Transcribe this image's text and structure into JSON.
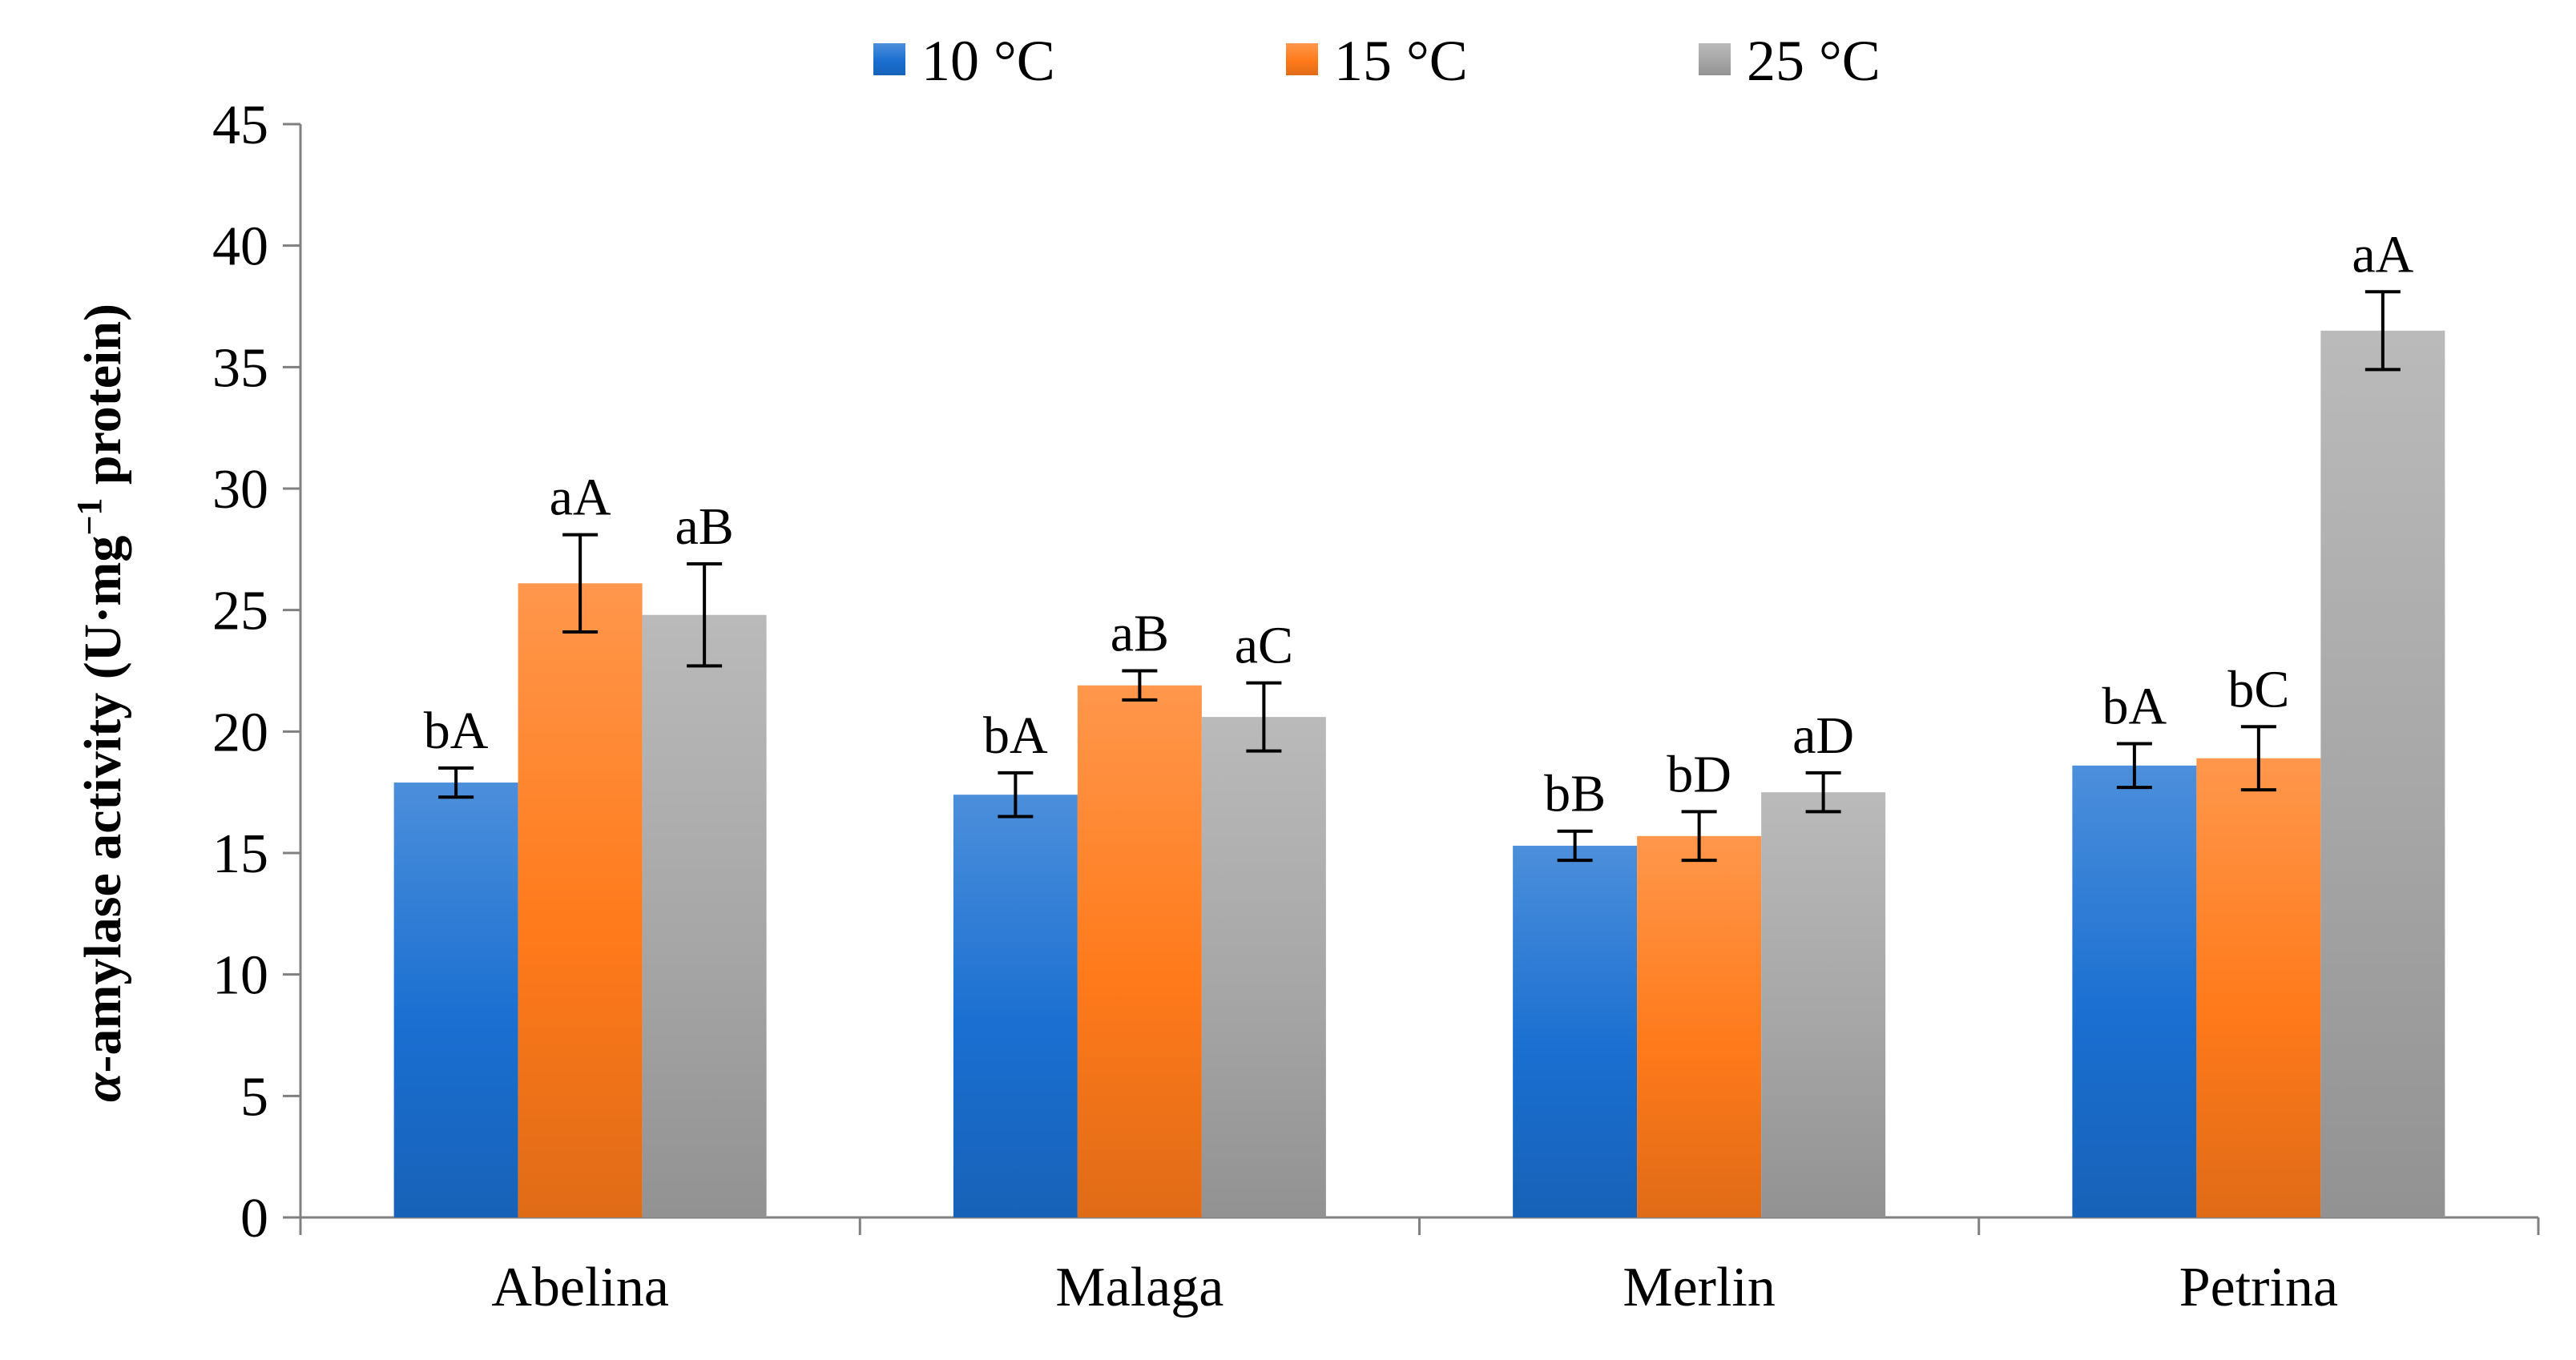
{
  "chart_data": {
    "type": "bar",
    "title": "",
    "xlabel": "",
    "ylabel": {
      "prefix": "α",
      "main": "-amylase activity (U·mg",
      "superscript": "−1",
      "suffix": " protein)"
    },
    "ylim": [
      0,
      45
    ],
    "yticks": [
      0,
      5,
      10,
      15,
      20,
      25,
      30,
      35,
      40,
      45
    ],
    "categories": [
      "Abelina",
      "Malaga",
      "Merlin",
      "Petrina"
    ],
    "legend_position": "top-center",
    "series": [
      {
        "name": "10 °C",
        "color": "#1a6fd1",
        "values": [
          17.9,
          17.4,
          15.3,
          18.6
        ],
        "errors": [
          0.6,
          0.9,
          0.6,
          0.9
        ],
        "labels": [
          "bA",
          "bA",
          "bB",
          "bA"
        ]
      },
      {
        "name": "15 °C",
        "color": "#ff7a1a",
        "values": [
          26.1,
          21.9,
          15.7,
          18.9
        ],
        "errors": [
          2.0,
          0.6,
          1.0,
          1.3
        ],
        "labels": [
          "aA",
          "aB",
          "bD",
          "bC"
        ]
      },
      {
        "name": "25 °C",
        "color": "#a6a6a6",
        "values": [
          24.8,
          20.6,
          17.5,
          36.5
        ],
        "errors": [
          2.1,
          1.4,
          0.8,
          1.6
        ],
        "labels": [
          "aB",
          "aC",
          "aD",
          "aA"
        ]
      }
    ]
  }
}
